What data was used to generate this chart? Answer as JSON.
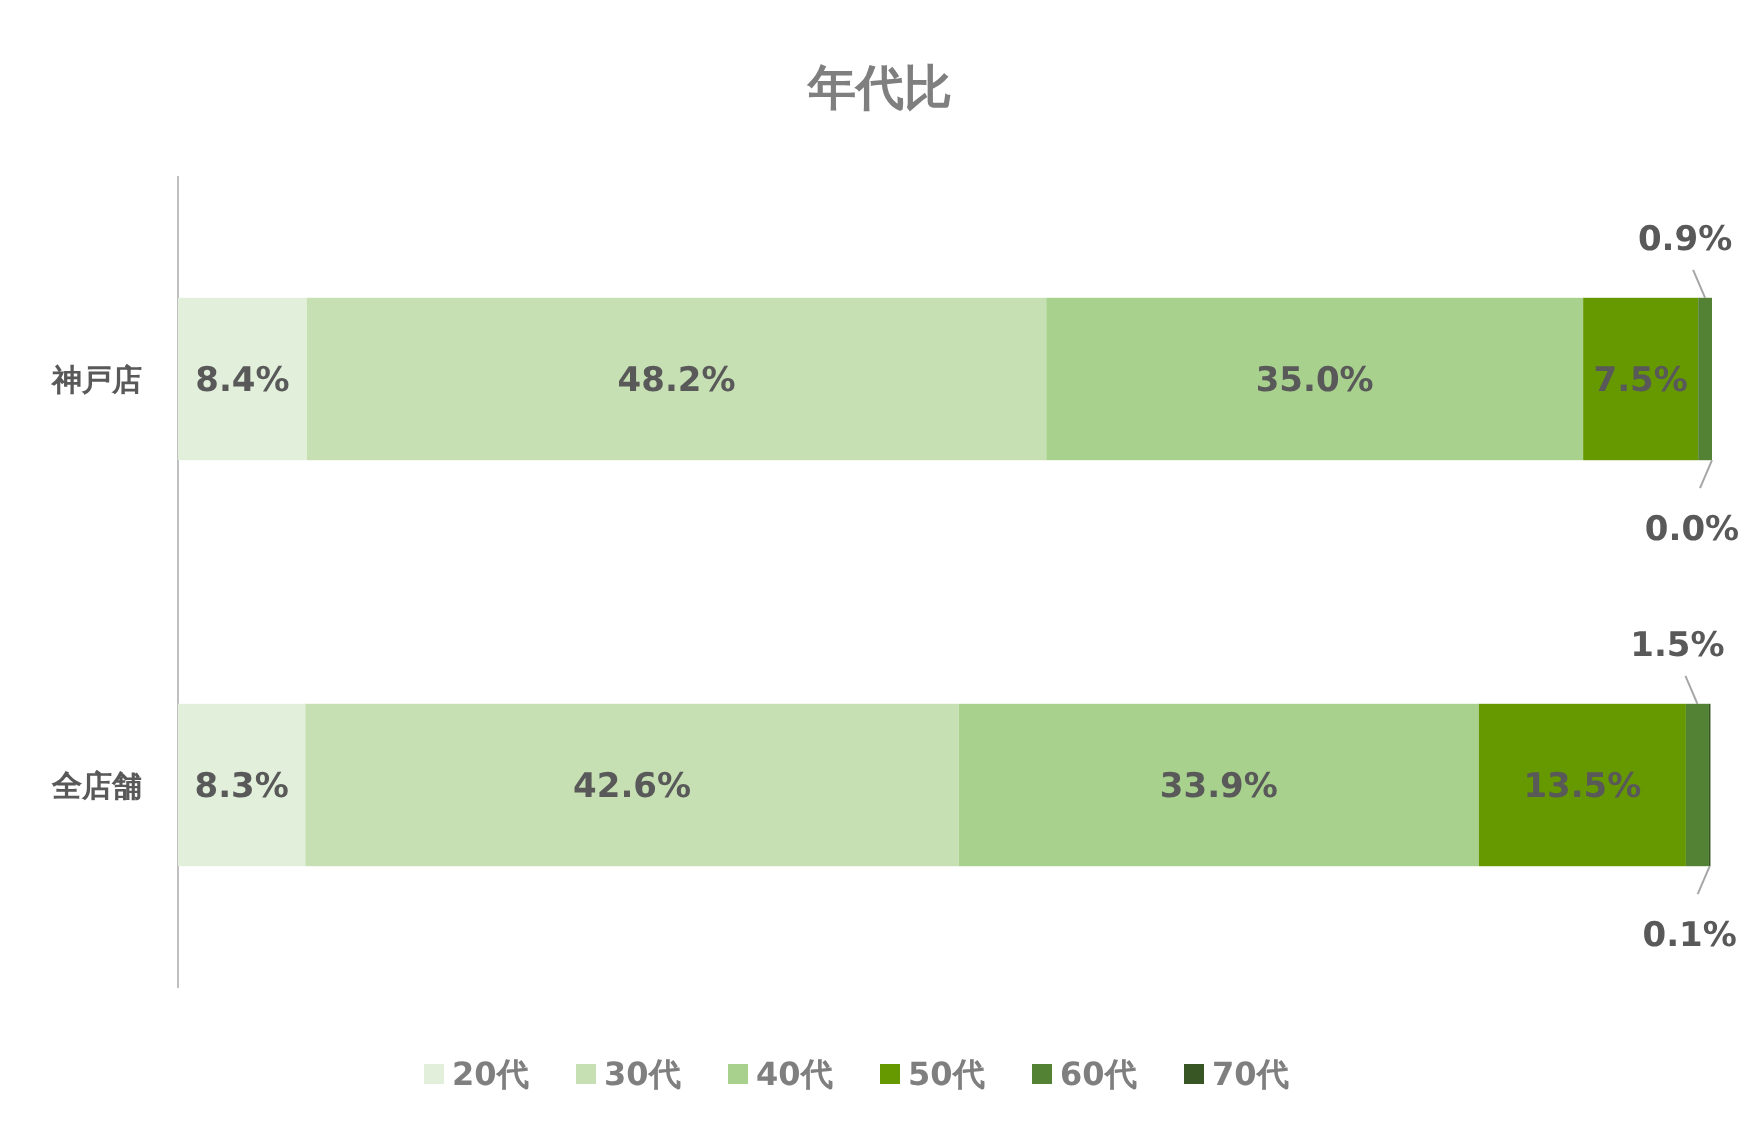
{
  "chart_data": {
    "type": "bar",
    "title": "年代比",
    "orientation": "horizontal",
    "stacked": true,
    "categories": [
      "神戸店",
      "全店舗"
    ],
    "xlim": [
      0,
      100
    ],
    "tick_labels": "y",
    "legend": "bottom",
    "series": [
      {
        "name": "20代",
        "color": "#e2efda",
        "values": [
          8.4,
          8.3
        ],
        "value_labels": [
          "8.4%",
          "8.3%"
        ]
      },
      {
        "name": "30代",
        "color": "#c6e0b4",
        "values": [
          48.2,
          42.6
        ],
        "value_labels": [
          "48.2%",
          "42.6%"
        ]
      },
      {
        "name": "40代",
        "color": "#a9d18e",
        "values": [
          35.0,
          33.9
        ],
        "value_labels": [
          "35.0%",
          "33.9%"
        ]
      },
      {
        "name": "50代",
        "color": "#669900",
        "values": [
          7.5,
          13.5
        ],
        "value_labels": [
          "7.5%",
          "13.5%"
        ]
      },
      {
        "name": "60代",
        "color": "#548235",
        "values": [
          0.9,
          1.5
        ],
        "value_labels": [
          "0.9%",
          "1.5%"
        ]
      },
      {
        "name": "70代",
        "color": "#375623",
        "values": [
          0.0,
          0.1
        ],
        "value_labels": [
          "0.0%",
          "0.1%"
        ]
      }
    ]
  }
}
